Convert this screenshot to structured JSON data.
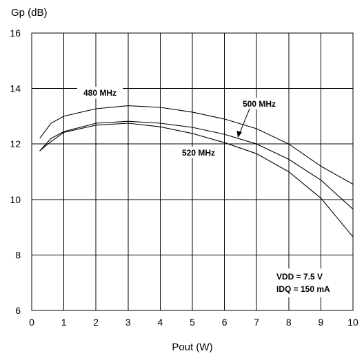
{
  "chart_data": {
    "type": "line",
    "xlabel": "Pout (W)",
    "ylabel": "Gp (dB)",
    "xlim": [
      0,
      10
    ],
    "ylim": [
      6,
      16
    ],
    "x_ticks": [
      0,
      1,
      2,
      3,
      4,
      5,
      6,
      7,
      8,
      9,
      10
    ],
    "y_ticks": [
      6,
      8,
      10,
      12,
      14,
      16
    ],
    "grid": true,
    "series": [
      {
        "name": "480 MHz",
        "x": [
          0.25,
          0.6,
          1,
          2,
          3,
          4,
          5,
          6,
          7,
          8,
          9,
          10
        ],
        "y": [
          12.2,
          12.75,
          13.0,
          13.27,
          13.38,
          13.32,
          13.15,
          12.9,
          12.55,
          12.0,
          11.2,
          10.55
        ]
      },
      {
        "name": "500 MHz",
        "x": [
          0.25,
          0.6,
          1,
          2,
          3,
          4,
          5,
          6,
          7,
          8,
          9,
          10
        ],
        "y": [
          11.75,
          12.2,
          12.45,
          12.75,
          12.82,
          12.75,
          12.6,
          12.35,
          12.0,
          11.45,
          10.7,
          9.65
        ]
      },
      {
        "name": "520 MHz",
        "x": [
          0.25,
          0.5,
          1,
          2,
          3,
          4,
          5,
          6,
          7,
          8,
          9,
          10
        ],
        "y": [
          11.75,
          12.0,
          12.42,
          12.68,
          12.75,
          12.62,
          12.38,
          12.05,
          11.65,
          11.0,
          10.05,
          8.65
        ]
      }
    ],
    "annotations": {
      "label_480": "480 MHz",
      "label_500": "500 MHz",
      "label_520": "520 MHz",
      "conditions_line1": "VDD = 7.5 V",
      "conditions_line2": "IDQ = 150 mA"
    }
  }
}
